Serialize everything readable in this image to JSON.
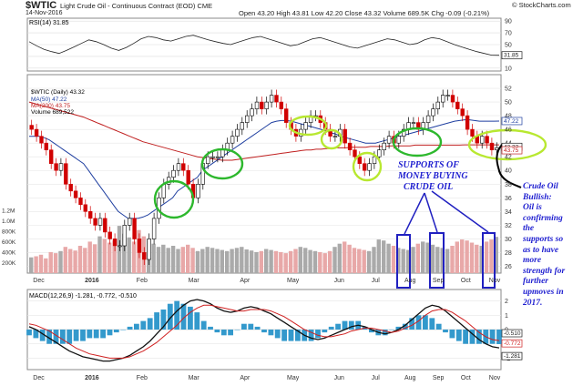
{
  "header": {
    "symbol": "$WTIC",
    "name": "Light Crude Oil - Continuous Contract (EOD)",
    "exchange": "CME",
    "date": "14-Nov-2016",
    "ohlc": "Open 43.20  High 43.81  Low 42.20  Close 43.32  Volume 689.5K  Chg -0.09 (-0.21%)",
    "source": "© StockCharts.com"
  },
  "colors": {
    "up": "#000000",
    "down": "#d00000",
    "ma50": "#1f3fa0",
    "ma200": "#c02020",
    "green_ellipse": "#2db82d",
    "yellow_ellipse": "#b8e830",
    "annotation": "#1f1fd0",
    "volume_up": "#aaaaaa",
    "volume_down": "#e8a8a8",
    "macd_hist": "#3399cc"
  },
  "chart_data": [
    {
      "type": "line",
      "panel": "rsi",
      "legend": "RSI(14) 31.85",
      "yticks": [
        10,
        30,
        50,
        70,
        90
      ],
      "ylim": [
        5,
        95
      ],
      "last_value_label": "31.85",
      "values": [
        55,
        48,
        42,
        38,
        35,
        40,
        46,
        52,
        58,
        55,
        50,
        44,
        40,
        45,
        52,
        60,
        64,
        62,
        58,
        56,
        60,
        64,
        66,
        62,
        58,
        55,
        52,
        50,
        54,
        58,
        62,
        64,
        60,
        56,
        52,
        48,
        50,
        55,
        60,
        62,
        58,
        54,
        50,
        46,
        44,
        48,
        52,
        56,
        60,
        58,
        54,
        50,
        52,
        58,
        62,
        60,
        55,
        50,
        46,
        42,
        38,
        35,
        32,
        31.85
      ]
    },
    {
      "type": "candlestick",
      "panel": "price",
      "legend": [
        "$WTIC (Daily) 43.32",
        "MA(50) 47.22",
        "MA(200) 43.75",
        "Volume 689,522"
      ],
      "yticks": [
        26,
        28,
        30,
        32,
        34,
        36,
        38,
        40,
        42,
        44,
        46,
        48,
        50,
        52
      ],
      "ylim": [
        25,
        54
      ],
      "volume_ticks": [
        "1.2M",
        "1.0M",
        "800K",
        "600K",
        "400K",
        "200K"
      ],
      "price_labels": [
        "47.22",
        "43.32",
        "43.75"
      ],
      "closes": [
        46,
        45,
        44,
        43,
        41,
        40,
        41,
        38,
        37,
        36,
        35,
        34,
        33,
        32,
        33,
        31,
        30,
        29,
        29,
        32,
        33,
        30,
        28,
        27,
        30,
        33,
        36,
        38,
        39,
        40,
        41,
        40,
        38,
        36,
        38,
        41,
        42,
        42,
        42,
        43,
        44,
        45,
        46,
        47,
        48,
        49,
        50,
        49,
        50,
        51,
        50,
        49,
        47,
        46,
        45,
        46,
        47,
        48,
        48,
        47,
        46,
        45,
        45,
        46,
        44,
        43,
        42,
        41,
        40,
        41,
        42,
        43,
        44,
        45,
        44,
        45,
        46,
        47,
        47,
        46,
        47,
        48,
        49,
        50,
        51,
        51,
        50,
        49,
        48,
        46,
        45,
        44,
        45,
        44,
        43,
        43.32
      ],
      "ma50": [
        45,
        45,
        45,
        44.8,
        44.5,
        44,
        43.5,
        43,
        42.5,
        42,
        41.5,
        41,
        40,
        39,
        38,
        37,
        36,
        35,
        34,
        33.5,
        33,
        33,
        33,
        33.2,
        33.5,
        34,
        34.5,
        35,
        35.5,
        36,
        37,
        37.5,
        38,
        38.5,
        39,
        40,
        40.5,
        41,
        41.5,
        42,
        42.5,
        43,
        43.5,
        44,
        44.5,
        45,
        45.5,
        46,
        46.5,
        47,
        47.2,
        47.3,
        47.3,
        47.2,
        47,
        46.8,
        46.6,
        46.4,
        46.2,
        46,
        45.8,
        45.5,
        45.3,
        45,
        44.8,
        44.6,
        44.4,
        44.2,
        44,
        44,
        44,
        44.2,
        44.4,
        44.6,
        44.8,
        45,
        45.2,
        45.4,
        45.6,
        45.8,
        46,
        46.2,
        46.4,
        46.6,
        46.8,
        47,
        47.2,
        47.3,
        47.4,
        47.4,
        47.3,
        47.2,
        47.2,
        47.2,
        47.2,
        47.22
      ],
      "ma200": [
        50,
        49.8,
        49.6,
        49.4,
        49.2,
        49,
        48.8,
        48.6,
        48.4,
        48.2,
        48,
        47.8,
        47.5,
        47.2,
        46.9,
        46.6,
        46.3,
        46,
        45.7,
        45.4,
        45.1,
        44.8,
        44.5,
        44.2,
        44,
        43.8,
        43.6,
        43.4,
        43.2,
        43,
        42.8,
        42.6,
        42.4,
        42.2,
        42,
        41.9,
        41.8,
        41.7,
        41.6,
        41.5,
        41.5,
        41.5,
        41.6,
        41.7,
        41.8,
        41.9,
        42,
        42.1,
        42.2,
        42.3,
        42.4,
        42.5,
        42.6,
        42.7,
        42.8,
        42.9,
        43,
        43,
        43.1,
        43.1,
        43.2,
        43.2,
        43.3,
        43.3,
        43.3,
        43.4,
        43.4,
        43.4,
        43.4,
        43.5,
        43.5,
        43.5,
        43.5,
        43.6,
        43.6,
        43.6,
        43.6,
        43.6,
        43.7,
        43.7,
        43.7,
        43.7,
        43.7,
        43.7,
        43.7,
        43.7,
        43.7,
        43.7,
        43.75,
        43.75,
        43.75,
        43.75,
        43.75,
        43.75,
        43.75,
        43.75
      ],
      "volume": [
        300,
        320,
        350,
        280,
        400,
        380,
        420,
        500,
        460,
        430,
        520,
        480,
        600,
        550,
        700,
        650,
        580,
        620,
        900,
        750,
        680,
        600,
        820,
        700,
        650,
        560,
        500,
        540,
        480,
        520,
        460,
        500,
        540,
        480,
        420,
        460,
        500,
        480,
        460,
        440,
        420,
        460,
        480,
        500,
        450,
        430,
        400,
        420,
        460,
        440,
        420,
        400,
        380,
        420,
        460,
        500,
        480,
        440,
        420,
        400,
        380,
        420,
        500,
        560,
        600,
        540,
        480,
        460,
        440,
        420,
        500,
        640,
        620,
        560,
        520,
        480,
        460,
        440,
        500,
        560,
        600,
        580,
        540,
        500,
        480,
        460,
        520,
        600,
        640,
        620,
        580,
        540,
        520,
        600,
        640,
        690
      ]
    },
    {
      "type": "line",
      "panel": "macd",
      "legend": "MACD(12,26,9) -1.281, -0.772, -0.510",
      "yticks": [
        -2,
        -1,
        0,
        1,
        2
      ],
      "ylim": [
        -2.8,
        2.8
      ],
      "value_labels": [
        "-0.510",
        "-0.772",
        "-1.281"
      ],
      "macd": [
        0.2,
        0,
        -0.3,
        -0.6,
        -0.9,
        -1.2,
        -1.5,
        -1.7,
        -1.9,
        -2,
        -2.1,
        -2.2,
        -2.2,
        -2.1,
        -2,
        -1.8,
        -1.5,
        -1.2,
        -0.8,
        -0.3,
        0.2,
        0.8,
        1.3,
        1.7,
        2,
        2.1,
        2,
        1.8,
        1.5,
        1.3,
        1.2,
        1.3,
        1.5,
        1.6,
        1.5,
        1.3,
        1.1,
        0.8,
        0.5,
        0.2,
        -0.1,
        -0.4,
        -0.6,
        -0.7,
        -0.6,
        -0.4,
        -0.2,
        0,
        0.2,
        0.3,
        0.2,
        0,
        -0.2,
        -0.3,
        -0.2,
        0,
        0.3,
        0.7,
        1.1,
        1.5,
        1.7,
        1.6,
        1.3,
        0.9,
        0.5,
        0.1,
        -0.3,
        -0.7,
        -1,
        -1.2,
        -1.281
      ],
      "signal": [
        0.4,
        0.3,
        0.1,
        -0.1,
        -0.4,
        -0.7,
        -1,
        -1.3,
        -1.5,
        -1.7,
        -1.8,
        -1.9,
        -2,
        -2,
        -2,
        -1.9,
        -1.7,
        -1.5,
        -1.2,
        -0.9,
        -0.5,
        -0.1,
        0.3,
        0.8,
        1.2,
        1.5,
        1.7,
        1.7,
        1.6,
        1.5,
        1.4,
        1.3,
        1.3,
        1.4,
        1.4,
        1.4,
        1.3,
        1.1,
        0.9,
        0.6,
        0.3,
        0,
        -0.2,
        -0.4,
        -0.5,
        -0.5,
        -0.4,
        -0.3,
        -0.1,
        0,
        0.1,
        0.1,
        0,
        -0.1,
        -0.2,
        -0.1,
        0.1,
        0.3,
        0.6,
        1,
        1.3,
        1.4,
        1.4,
        1.2,
        0.9,
        0.6,
        0.2,
        -0.2,
        -0.5,
        -0.7,
        -0.772
      ]
    }
  ],
  "x_axis": {
    "labels": [
      "Dec",
      "2016",
      "Feb",
      "Mar",
      "Apr",
      "May",
      "Jun",
      "Jul",
      "Aug",
      "Sep",
      "Oct",
      "Nov"
    ],
    "bold": [
      false,
      true,
      false,
      false,
      false,
      false,
      false,
      false,
      false,
      false,
      false,
      false
    ],
    "positions": [
      0.02,
      0.13,
      0.24,
      0.35,
      0.46,
      0.56,
      0.66,
      0.74,
      0.81,
      0.87,
      0.93,
      0.99
    ]
  },
  "annotations": {
    "supports": [
      "SUPPORTS OF",
      "MONEY BUYING",
      "CRUDE OIL"
    ],
    "bullish": [
      "Crude Oil",
      "Bullish:",
      "Oil is",
      "confirming",
      "the",
      "supports so",
      "as to have",
      "more",
      "strength for",
      "further",
      "upmoves in",
      "2017."
    ]
  }
}
